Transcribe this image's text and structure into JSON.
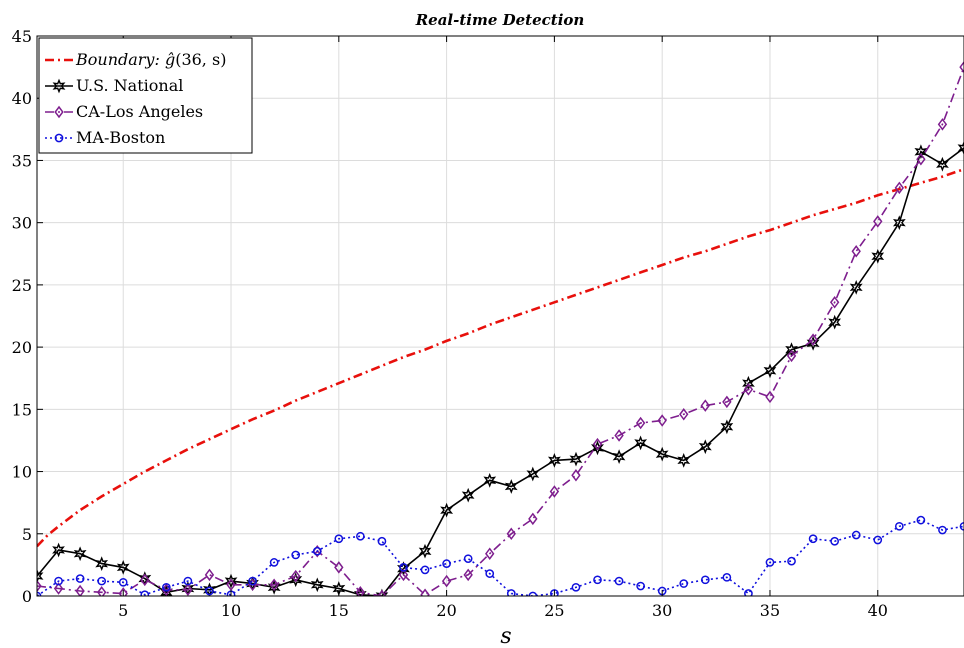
{
  "chart_data": {
    "type": "line",
    "title": "Real-time Detection",
    "xlabel": "s",
    "ylabel": "",
    "xlim": [
      1,
      44
    ],
    "ylim": [
      0,
      45
    ],
    "xticks": [
      5,
      10,
      15,
      20,
      25,
      30,
      35,
      40
    ],
    "yticks": [
      0,
      5,
      10,
      15,
      20,
      25,
      30,
      35,
      40,
      45
    ],
    "grid": true,
    "legend_position": "top-left",
    "series": [
      {
        "name": "Boundary: ĝ(36, s)",
        "legend_main": "Boundary: ",
        "legend_math_g": "ĝ",
        "legend_math_args": "(36, s)",
        "color": "#e8100c",
        "line": "dashdot",
        "marker": "none",
        "x": [
          1,
          1.5,
          2,
          3,
          4,
          5,
          6,
          7,
          8,
          9,
          10,
          11,
          12,
          13,
          14,
          15,
          16,
          17,
          18,
          19,
          20,
          21,
          22,
          23,
          24,
          25,
          26,
          27,
          28,
          29,
          30,
          31,
          32,
          33,
          34,
          35,
          36,
          37,
          38,
          39,
          40,
          41,
          42,
          43,
          44
        ],
        "values": [
          4.0,
          4.9,
          5.6,
          6.9,
          8.0,
          9.0,
          10.0,
          10.9,
          11.8,
          12.6,
          13.4,
          14.2,
          14.9,
          15.7,
          16.4,
          17.1,
          17.8,
          18.5,
          19.2,
          19.8,
          20.5,
          21.1,
          21.8,
          22.4,
          23.0,
          23.6,
          24.2,
          24.8,
          25.4,
          26.0,
          26.6,
          27.2,
          27.7,
          28.3,
          28.9,
          29.4,
          30.0,
          30.6,
          31.1,
          31.6,
          32.2,
          32.7,
          33.2,
          33.7,
          34.3
        ]
      },
      {
        "name": "U.S. National",
        "color": "#000000",
        "line": "solid",
        "marker": "hexagram",
        "x": [
          1,
          2,
          3,
          4,
          5,
          6,
          7,
          8,
          9,
          10,
          11,
          12,
          13,
          14,
          15,
          16,
          17,
          18,
          19,
          20,
          21,
          22,
          23,
          24,
          25,
          26,
          27,
          28,
          29,
          30,
          31,
          32,
          33,
          34,
          35,
          36,
          37,
          38,
          39,
          40,
          41,
          42,
          43,
          44
        ],
        "values": [
          1.6,
          3.7,
          3.4,
          2.6,
          2.3,
          1.4,
          0.3,
          0.6,
          0.5,
          1.2,
          1.0,
          0.7,
          1.3,
          0.9,
          0.6,
          0.1,
          0.0,
          2.2,
          3.6,
          6.9,
          8.1,
          9.3,
          8.8,
          9.8,
          10.9,
          11.0,
          11.9,
          11.2,
          12.3,
          11.4,
          10.9,
          12.0,
          13.6,
          17.1,
          18.1,
          19.8,
          20.3,
          22.0,
          24.8,
          27.3,
          30.0,
          35.7,
          34.7,
          36.0
        ]
      },
      {
        "name": "CA-Los Angeles",
        "color": "#7e1e8e",
        "line": "dashdot",
        "marker": "diamond",
        "x": [
          1,
          2,
          3,
          4,
          5,
          6,
          7,
          8,
          9,
          10,
          11,
          12,
          13,
          14,
          15,
          16,
          17,
          18,
          19,
          20,
          21,
          22,
          23,
          24,
          25,
          26,
          27,
          28,
          29,
          30,
          31,
          32,
          33,
          34,
          35,
          36,
          37,
          38,
          39,
          40,
          41,
          42,
          43,
          44
        ],
        "values": [
          0.8,
          0.6,
          0.4,
          0.3,
          0.2,
          1.3,
          0.5,
          0.5,
          1.7,
          0.9,
          0.9,
          0.9,
          1.6,
          3.6,
          2.3,
          0.3,
          0.0,
          1.7,
          0.1,
          1.2,
          1.7,
          3.4,
          5.0,
          6.2,
          8.4,
          9.7,
          12.2,
          12.9,
          13.9,
          14.1,
          14.6,
          15.3,
          15.6,
          16.6,
          16.0,
          19.3,
          20.6,
          23.6,
          27.7,
          30.1,
          32.8,
          35.1,
          37.9,
          42.5
        ]
      },
      {
        "name": "MA-Boston",
        "color": "#1010dd",
        "line": "dotted",
        "marker": "circle",
        "x": [
          1,
          2,
          3,
          4,
          5,
          6,
          7,
          8,
          9,
          10,
          11,
          12,
          13,
          14,
          15,
          16,
          17,
          18,
          19,
          20,
          21,
          22,
          23,
          24,
          25,
          26,
          27,
          28,
          29,
          30,
          31,
          32,
          33,
          34,
          35,
          36,
          37,
          38,
          39,
          40,
          41,
          42,
          43,
          44
        ],
        "values": [
          0.0,
          1.2,
          1.4,
          1.2,
          1.1,
          0.1,
          0.7,
          1.2,
          0.4,
          0.1,
          1.2,
          2.7,
          3.3,
          3.6,
          4.6,
          4.8,
          4.4,
          2.3,
          2.1,
          2.6,
          3.0,
          1.8,
          0.2,
          0.0,
          0.2,
          0.7,
          1.3,
          1.2,
          0.8,
          0.4,
          1.0,
          1.3,
          1.5,
          0.2,
          2.7,
          2.8,
          4.6,
          4.4,
          4.9,
          4.5,
          5.6,
          6.1,
          5.3,
          5.6
        ]
      }
    ]
  }
}
